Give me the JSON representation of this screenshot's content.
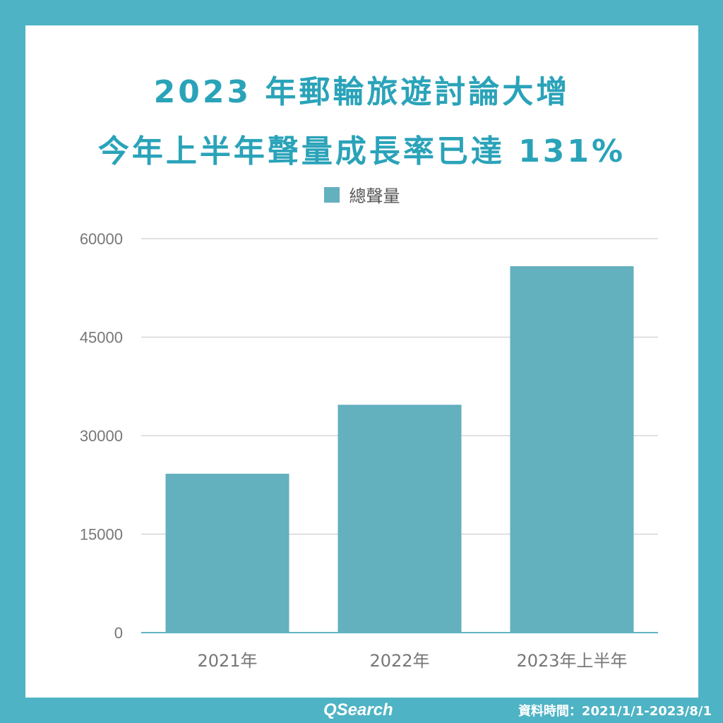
{
  "header": {
    "title_line1": "2023 年郵輪旅遊討論大增",
    "title_line2": "今年上半年聲量成長率已達 131%"
  },
  "colors": {
    "frame": "#4eb3c4",
    "title": "#2aa3b9",
    "bar": "#63b0bf",
    "grid": "#cfcfcf",
    "axis_text": "#777777"
  },
  "chart_data": {
    "type": "bar",
    "categories": [
      "2021年",
      "2022年",
      "2023年上半年"
    ],
    "series": [
      {
        "name": "總聲量",
        "values": [
          24200,
          34700,
          55800
        ]
      }
    ],
    "ylim": [
      0,
      60000
    ],
    "yticks": [
      0,
      15000,
      30000,
      45000,
      60000
    ],
    "grid": true,
    "legend_position": "top-center",
    "xlabel": "",
    "ylabel": ""
  },
  "footer": {
    "brand": "QSearch",
    "date_range": "資料時間：2021/1/1-2023/8/1"
  }
}
